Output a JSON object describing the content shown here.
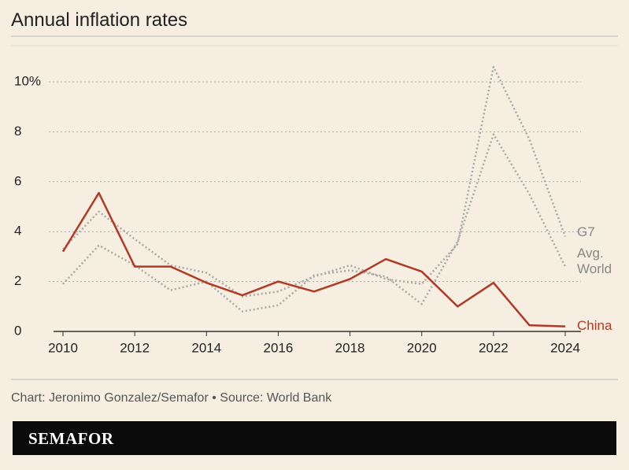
{
  "chart_data": {
    "type": "line",
    "title": "Annual inflation rates",
    "x": [
      2010,
      2011,
      2012,
      2013,
      2014,
      2015,
      2016,
      2017,
      2018,
      2019,
      2020,
      2021,
      2022,
      2023,
      2024
    ],
    "series": [
      {
        "name": "G7",
        "color": "#a8a8a8",
        "dashed": true,
        "values": [
          3.3,
          4.8,
          3.7,
          2.65,
          2.35,
          1.4,
          1.6,
          2.2,
          2.65,
          2.1,
          1.9,
          3.5,
          10.6,
          7.7,
          3.8
        ]
      },
      {
        "name": "Avg. World",
        "color": "#a8a8a8",
        "dashed": true,
        "values": [
          1.9,
          3.45,
          2.65,
          1.65,
          2.0,
          0.8,
          1.05,
          2.25,
          2.45,
          2.2,
          1.1,
          3.6,
          7.9,
          5.5,
          2.6
        ]
      },
      {
        "name": "China",
        "color": "#b03a26",
        "dashed": false,
        "values": [
          3.2,
          5.55,
          2.6,
          2.6,
          1.95,
          1.45,
          2.0,
          1.6,
          2.1,
          2.9,
          2.4,
          1.0,
          1.95,
          0.25,
          0.2
        ]
      }
    ],
    "xlim": [
      2010,
      2024
    ],
    "xticks": [
      2010,
      2012,
      2014,
      2016,
      2018,
      2020,
      2022,
      2024
    ],
    "ylim": [
      0,
      10
    ],
    "yticks": [
      0,
      2,
      4,
      6,
      8,
      {
        "value": 10,
        "label": "10%"
      }
    ],
    "grid": true,
    "source": "Chart: Jeronimo Gonzalez/Semafor • Source: World Bank",
    "brand": "SEMAFOR"
  }
}
